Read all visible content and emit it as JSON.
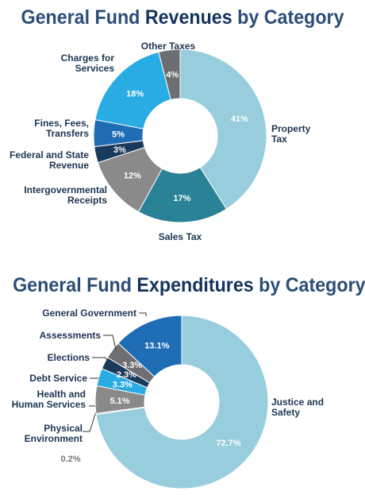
{
  "revenues": {
    "title_part1": "General Fund ",
    "title_part2": "Revenues",
    "title_part3": " by Category"
  },
  "expenditures": {
    "title_part1": "General Fund ",
    "title_part2": "Expenditures",
    "title_part3": " by Category"
  },
  "chart_data": [
    {
      "type": "pie",
      "title": "General Fund Revenues by Category",
      "categories": [
        "Property Tax",
        "Sales Tax",
        "Intergovernmental Receipts",
        "Federal and State Revenue",
        "Fines, Fees, Transfers",
        "Charges for Services",
        "Other Taxes"
      ],
      "values": [
        41,
        17,
        12,
        3,
        5,
        18,
        4
      ],
      "value_labels": [
        "41%",
        "17%",
        "12%",
        "3%",
        "5%",
        "18%",
        "4%"
      ],
      "colors": [
        "#97cddc",
        "#2a8296",
        "#8a8a8a",
        "#1a3a5c",
        "#1f6db5",
        "#29ace3",
        "#6d6e71"
      ],
      "donut": true
    },
    {
      "type": "pie",
      "title": "General Fund Expenditures by Category",
      "categories": [
        "Justice and Safety",
        "Physical Environment",
        "Health and Human Services",
        "Debt Service",
        "Elections",
        "Assessments",
        "General Government"
      ],
      "values": [
        72.7,
        0.2,
        5.1,
        3.3,
        2.3,
        3.3,
        13.1
      ],
      "value_labels": [
        "72.7%",
        "0.2%",
        "5.1%",
        "3.3%",
        "2.3%",
        "3.3%",
        "13.1%"
      ],
      "colors": [
        "#97cddc",
        "#8a8a8a",
        "#8a8a8a",
        "#29ace3",
        "#1a3a5c",
        "#6d6e71",
        "#1f6db5"
      ],
      "donut": true
    }
  ]
}
